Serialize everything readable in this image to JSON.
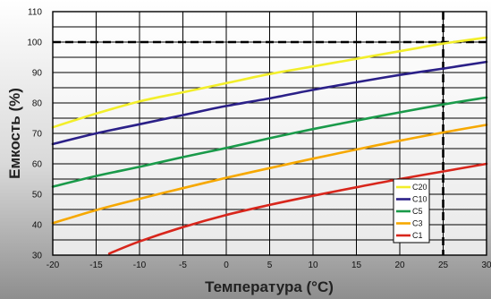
{
  "chart_data": {
    "type": "line",
    "xlabel": "Температура (°C)",
    "ylabel": "Емкость (%)",
    "xlim": [
      -20,
      30
    ],
    "ylim": [
      30,
      110
    ],
    "xticks": [
      -20,
      -15,
      -10,
      -5,
      0,
      5,
      10,
      15,
      20,
      25,
      30
    ],
    "yticks": [
      30,
      40,
      50,
      60,
      70,
      80,
      90,
      100,
      110
    ],
    "grid": true,
    "legend_position": "bottom-right",
    "background": "gradient-grey",
    "reference_lines": [
      {
        "axis": "y",
        "value": 100,
        "style": "dashed"
      },
      {
        "axis": "x",
        "value": 25,
        "style": "dashed"
      }
    ],
    "series": [
      {
        "name": "C20",
        "color": "#f2ee2a",
        "x": [
          -20,
          -15,
          -10,
          -5,
          0,
          5,
          10,
          15,
          20,
          25,
          30
        ],
        "y": [
          72,
          76.5,
          80.5,
          83.5,
          86.5,
          89.5,
          92,
          94.5,
          97,
          99.5,
          101.5
        ]
      },
      {
        "name": "C10",
        "color": "#2b2088",
        "x": [
          -20,
          -15,
          -10,
          -5,
          0,
          5,
          10,
          15,
          20,
          25,
          30
        ],
        "y": [
          66.5,
          70,
          73,
          76,
          79,
          81.5,
          84.3,
          86.8,
          89.2,
          91.3,
          93.5
        ]
      },
      {
        "name": "C5",
        "color": "#1a9a4a",
        "x": [
          -20,
          -15,
          -10,
          -5,
          0,
          5,
          10,
          15,
          20,
          25,
          30
        ],
        "y": [
          52.5,
          56,
          59,
          62.2,
          65.2,
          68.4,
          71.4,
          74.2,
          76.9,
          79.5,
          81.8
        ]
      },
      {
        "name": "C3",
        "color": "#f6a800",
        "x": [
          -20,
          -15,
          -10,
          -5,
          0,
          5,
          10,
          15,
          20,
          25,
          30
        ],
        "y": [
          40.5,
          44.8,
          48.5,
          52,
          55.4,
          58.6,
          61.7,
          64.7,
          67.6,
          70.3,
          72.8
        ]
      },
      {
        "name": "C1",
        "color": "#d8261c",
        "x": [
          -13.5,
          -10,
          -5,
          0,
          5,
          10,
          15,
          20,
          25,
          30
        ],
        "y": [
          30.5,
          34.5,
          39.2,
          43.2,
          46.5,
          49.5,
          52.3,
          55,
          57.5,
          60
        ]
      }
    ]
  }
}
